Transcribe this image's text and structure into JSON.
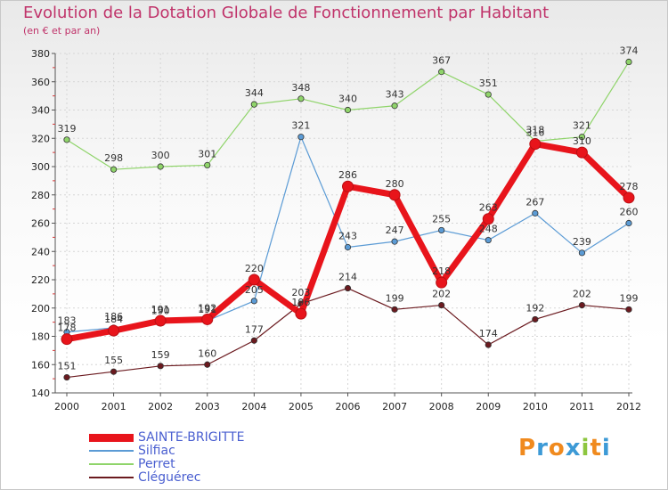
{
  "title": "Evolution de la Dotation Globale de Fonctionnement par Habitant",
  "subtitle": "(en € et par an)",
  "brand": {
    "text": "Proxiti",
    "letters": [
      "P",
      "r",
      "o",
      "x",
      "i",
      "t",
      "i"
    ],
    "colors": [
      "#f08a1e",
      "#3d9ad6",
      "#f08a1e",
      "#3d9ad6",
      "#8dc63f",
      "#f08a1e",
      "#3d9ad6"
    ]
  },
  "chart_data": {
    "type": "line",
    "title": "Evolution de la Dotation Globale de Fonctionnement par Habitant",
    "subtitle": "(en € et par an)",
    "x": [
      "2000",
      "2001",
      "2002",
      "2003",
      "2004",
      "2005",
      "2006",
      "2007",
      "2008",
      "2009",
      "2010",
      "2011",
      "2012"
    ],
    "ylim": [
      140,
      380
    ],
    "yticks": [
      140,
      160,
      180,
      200,
      220,
      240,
      260,
      280,
      300,
      320,
      340,
      360,
      380
    ],
    "grid": true,
    "legend_position": "bottom-left",
    "series": [
      {
        "name": "SAINTE-BRIGITTE",
        "color": "#e8141b",
        "width": 7,
        "marker": 6,
        "values": [
          178,
          184,
          191,
          192,
          220,
          196,
          286,
          280,
          218,
          263,
          316,
          310,
          278
        ],
        "labels": [
          "178",
          "184",
          "191",
          "192",
          "220",
          "196",
          "286",
          "280",
          "218",
          "263",
          "316",
          "310",
          "278"
        ]
      },
      {
        "name": "Silfiac",
        "color": "#5b9bd5",
        "width": 1.2,
        "marker": 3.2,
        "values": [
          183,
          186,
          190,
          191,
          205,
          321,
          243,
          247,
          255,
          248,
          267,
          239,
          260
        ],
        "labels": [
          "183",
          "186",
          "190",
          "191",
          "205",
          "321",
          "243",
          "247",
          "255",
          "248",
          "267",
          "239",
          "260"
        ]
      },
      {
        "name": "Perret",
        "color": "#8fd46a",
        "width": 1.2,
        "marker": 3.2,
        "values": [
          319,
          298,
          300,
          301,
          344,
          348,
          340,
          343,
          367,
          351,
          318,
          321,
          374
        ],
        "labels": [
          "319",
          "298",
          "300",
          "301",
          "344",
          "348",
          "340",
          "343",
          "367",
          "351",
          "318",
          "321",
          "374"
        ]
      },
      {
        "name": "Cléguérec",
        "color": "#6b1a1f",
        "width": 1.2,
        "marker": 3.2,
        "values": [
          151,
          155,
          159,
          160,
          177,
          203,
          214,
          199,
          202,
          174,
          192,
          202,
          199
        ],
        "labels": [
          "151",
          "155",
          "159",
          "160",
          "177",
          "203",
          "214",
          "199",
          "202",
          "174",
          "192",
          "202",
          "199"
        ]
      }
    ]
  }
}
